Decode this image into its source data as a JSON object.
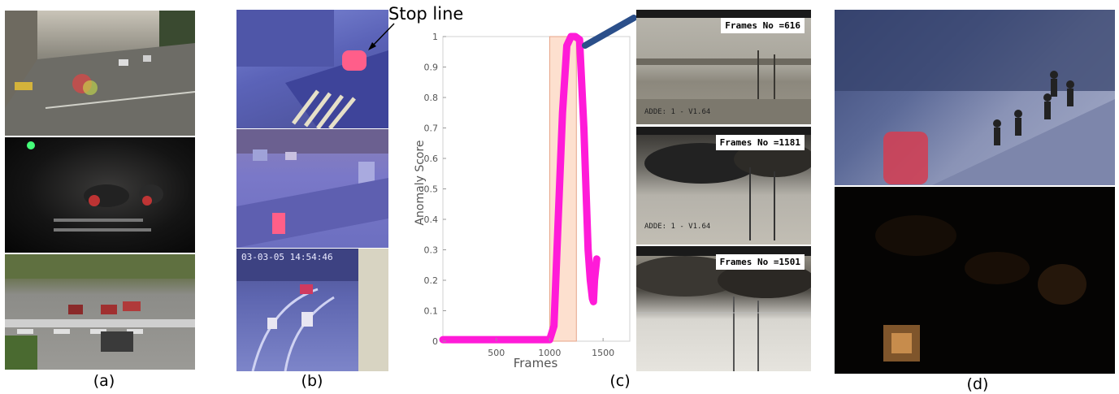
{
  "captions": {
    "a": "(a)",
    "b": "(b)",
    "c": "(c)",
    "d": "(d)"
  },
  "annotation": {
    "stop_line": "Stop line"
  },
  "frames": [
    {
      "label": "Frames No =616"
    },
    {
      "label": "Frames No =1181"
    },
    {
      "label": "Frames No =1501"
    }
  ],
  "chart_data": {
    "type": "line",
    "xlabel": "Frames",
    "ylabel": "Anomaly Score",
    "xlim": [
      0,
      1750
    ],
    "ylim": [
      0,
      1
    ],
    "xticks": [
      500,
      1000,
      1500
    ],
    "yticks": [
      0,
      0.1,
      0.2,
      0.3,
      0.4,
      0.5,
      0.6,
      0.7,
      0.8,
      0.9,
      1
    ],
    "grid": false,
    "series": [
      {
        "color": "#ff1bd8",
        "x": [
          0,
          200,
          400,
          600,
          800,
          1000,
          1040,
          1080,
          1120,
          1160,
          1200,
          1240,
          1280,
          1320,
          1340,
          1360,
          1380,
          1400,
          1410,
          1420,
          1440
        ],
        "y": [
          0.005,
          0.005,
          0.005,
          0.005,
          0.005,
          0.005,
          0.05,
          0.4,
          0.75,
          0.97,
          1.0,
          1.0,
          0.99,
          0.7,
          0.5,
          0.3,
          0.2,
          0.14,
          0.13,
          0.2,
          0.27
        ]
      }
    ],
    "highlight_region": {
      "x0": 1000,
      "x1": 1250,
      "color": "#fde0cf"
    }
  }
}
